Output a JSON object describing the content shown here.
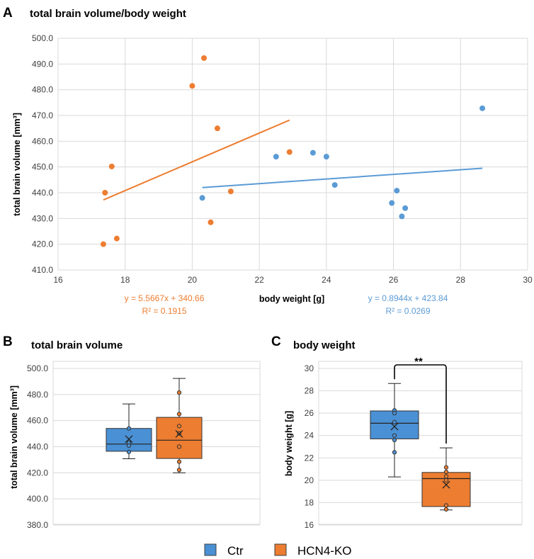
{
  "colors": {
    "ctr": "#5b9bd5",
    "ko": "#ed7d31",
    "ctr_box": "#4a90d4",
    "ko_box": "#ed7d31",
    "grid": "#d9d9d9",
    "text": "#404040"
  },
  "panels": {
    "a": "A",
    "b": "B",
    "c": "C"
  },
  "legend": {
    "ctr": "Ctr",
    "ko": "HCN4-KO"
  },
  "chart_data": [
    {
      "id": "A",
      "type": "scatter",
      "title": "total brain volume/body weight",
      "xlabel": "body weight [g]",
      "ylabel": "total brain volume [mm³]",
      "xlim": [
        16,
        30
      ],
      "ylim": [
        410,
        500
      ],
      "xticks": [
        "16",
        "18",
        "20",
        "22",
        "24",
        "26",
        "28",
        "30"
      ],
      "yticks": [
        "410.0",
        "420.0",
        "430.0",
        "440.0",
        "450.0",
        "460.0",
        "470.0",
        "480.0",
        "490.0",
        "500.0"
      ],
      "series": [
        {
          "name": "Ctr",
          "points": [
            [
              20.3,
              438.0
            ],
            [
              22.5,
              454.0
            ],
            [
              23.6,
              455.5
            ],
            [
              24.0,
              454.0
            ],
            [
              24.25,
              443.0
            ],
            [
              25.95,
              436.0
            ],
            [
              26.1,
              440.8
            ],
            [
              26.35,
              434.0
            ],
            [
              26.25,
              430.8
            ],
            [
              28.65,
              472.8
            ]
          ],
          "trend": {
            "x": [
              20.3,
              28.65
            ],
            "y": [
              442.0,
              449.5
            ]
          },
          "equation": "y = 0.8944x + 423.84",
          "r2": "R² = 0.0269"
        },
        {
          "name": "HCN4-KO",
          "points": [
            [
              17.35,
              420.0
            ],
            [
              17.4,
              440.0
            ],
            [
              17.6,
              450.2
            ],
            [
              17.75,
              422.2
            ],
            [
              20.0,
              481.5
            ],
            [
              20.35,
              492.3
            ],
            [
              20.55,
              428.5
            ],
            [
              20.75,
              465.0
            ],
            [
              21.15,
              440.5
            ],
            [
              22.9,
              455.8
            ]
          ],
          "trend": {
            "x": [
              17.35,
              22.9
            ],
            "y": [
              437.2,
              468.2
            ]
          },
          "equation": "y = 5.5667x + 340.66",
          "r2": "R² = 0.1915"
        }
      ]
    },
    {
      "id": "B",
      "type": "box",
      "title": "total brain volume",
      "ylabel": "total brain volume [mm³]",
      "ylim": [
        380,
        500
      ],
      "yticks": [
        "380.0",
        "400.0",
        "420.0",
        "440.0",
        "460.0",
        "480.0",
        "500.0"
      ],
      "boxes": [
        {
          "name": "Ctr",
          "min": 430.8,
          "q1": 436.5,
          "median": 442.0,
          "q3": 454.0,
          "max": 472.8,
          "mean": 445.8,
          "points": [
            454.0,
            443.0,
            440.8,
            436.0
          ]
        },
        {
          "name": "HCN4-KO",
          "min": 420.0,
          "q1": 431.0,
          "median": 445.0,
          "q3": 462.5,
          "max": 492.3,
          "mean": 449.8,
          "points": [
            481.5,
            465.0,
            455.8,
            450.2,
            440.0,
            428.5,
            422.2
          ]
        }
      ]
    },
    {
      "id": "C",
      "type": "box",
      "title": "body weight",
      "ylabel": "body weight [g]",
      "ylim": [
        16,
        30
      ],
      "yticks": [
        "16",
        "18",
        "20",
        "22",
        "24",
        "26",
        "28",
        "30"
      ],
      "significance": "**",
      "boxes": [
        {
          "name": "Ctr",
          "min": 20.3,
          "q1": 23.7,
          "median": 25.1,
          "q3": 26.2,
          "max": 28.65,
          "mean": 24.8,
          "points": [
            26.25,
            26.0,
            25.2,
            24.0,
            23.6,
            22.5
          ]
        },
        {
          "name": "HCN4-KO",
          "min": 17.35,
          "q1": 17.65,
          "median": 20.15,
          "q3": 20.7,
          "max": 22.9,
          "mean": 19.6,
          "points": [
            21.15,
            20.75,
            20.35,
            20.0,
            17.75,
            17.4
          ]
        }
      ]
    }
  ]
}
